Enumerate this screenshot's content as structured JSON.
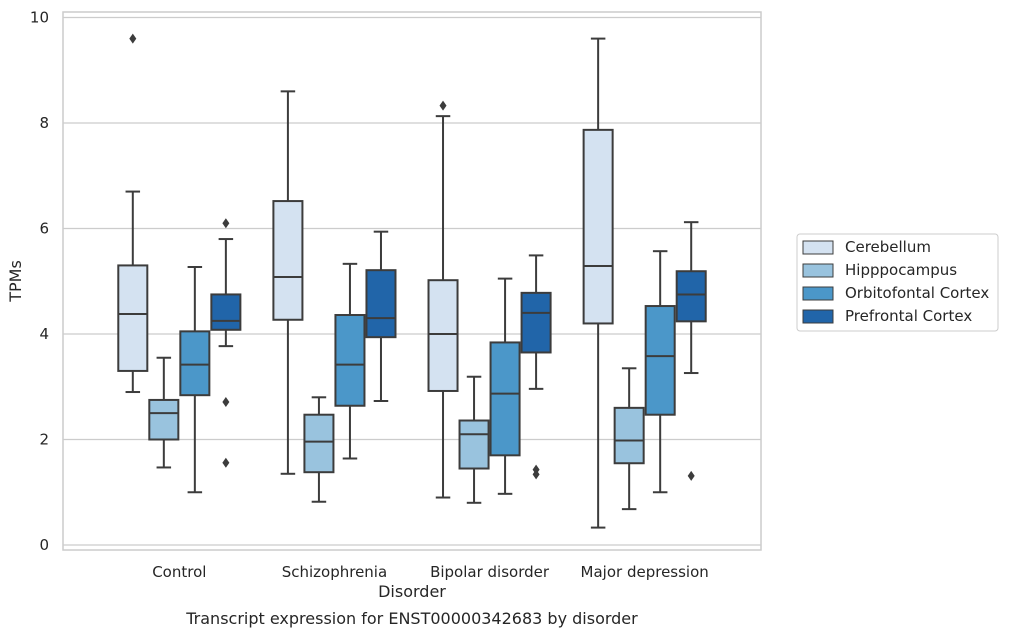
{
  "chart_data": {
    "type": "box",
    "caption": "Transcript expression for ENST00000342683 by disorder",
    "xlabel": "Disorder",
    "ylabel": "TPMs",
    "ylim": [
      -0.1,
      10.05
    ],
    "yticks": [
      0,
      2,
      4,
      6,
      8,
      10
    ],
    "grid": "horizontal",
    "legend_position": "right",
    "categories": [
      "Control",
      "Schizophrenia",
      "Bipolar disorder",
      "Major depression"
    ],
    "series": [
      {
        "name": "Cerebellum",
        "color": "#d4e2f1",
        "boxes": [
          {
            "whisker_low": 2.9,
            "q1": 3.3,
            "median": 4.38,
            "q3": 5.3,
            "whisker_high": 6.7,
            "outliers": [
              9.6
            ]
          },
          {
            "whisker_low": 1.35,
            "q1": 4.27,
            "median": 5.08,
            "q3": 6.52,
            "whisker_high": 8.6,
            "outliers": []
          },
          {
            "whisker_low": 0.9,
            "q1": 2.92,
            "median": 4.0,
            "q3": 5.02,
            "whisker_high": 8.13,
            "outliers": [
              8.33
            ]
          },
          {
            "whisker_low": 0.33,
            "q1": 4.2,
            "median": 5.29,
            "q3": 7.87,
            "whisker_high": 9.6,
            "outliers": []
          }
        ]
      },
      {
        "name": "Hipppocampus",
        "color": "#99c3de",
        "boxes": [
          {
            "whisker_low": 1.47,
            "q1": 2.0,
            "median": 2.5,
            "q3": 2.75,
            "whisker_high": 3.55,
            "outliers": []
          },
          {
            "whisker_low": 0.82,
            "q1": 1.38,
            "median": 1.96,
            "q3": 2.47,
            "whisker_high": 2.8,
            "outliers": []
          },
          {
            "whisker_low": 0.8,
            "q1": 1.45,
            "median": 2.1,
            "q3": 2.36,
            "whisker_high": 3.19,
            "outliers": []
          },
          {
            "whisker_low": 0.68,
            "q1": 1.55,
            "median": 1.98,
            "q3": 2.6,
            "whisker_high": 3.35,
            "outliers": []
          }
        ]
      },
      {
        "name": "Orbitofontal Cortex",
        "color": "#4b97c9",
        "boxes": [
          {
            "whisker_low": 1.0,
            "q1": 2.84,
            "median": 3.42,
            "q3": 4.05,
            "whisker_high": 5.27,
            "outliers": []
          },
          {
            "whisker_low": 1.64,
            "q1": 2.64,
            "median": 3.42,
            "q3": 4.36,
            "whisker_high": 5.33,
            "outliers": []
          },
          {
            "whisker_low": 0.97,
            "q1": 1.7,
            "median": 2.87,
            "q3": 3.84,
            "whisker_high": 5.05,
            "outliers": []
          },
          {
            "whisker_low": 1.0,
            "q1": 2.47,
            "median": 3.58,
            "q3": 4.53,
            "whisker_high": 5.57,
            "outliers": []
          }
        ]
      },
      {
        "name": "Prefrontal Cortex",
        "color": "#2165a9",
        "boxes": [
          {
            "whisker_low": 3.77,
            "q1": 4.08,
            "median": 4.25,
            "q3": 4.75,
            "whisker_high": 5.8,
            "outliers": [
              6.1,
              2.71,
              1.56
            ]
          },
          {
            "whisker_low": 2.73,
            "q1": 3.94,
            "median": 4.3,
            "q3": 5.21,
            "whisker_high": 5.94,
            "outliers": []
          },
          {
            "whisker_low": 2.96,
            "q1": 3.65,
            "median": 4.4,
            "q3": 4.78,
            "whisker_high": 5.49,
            "outliers": [
              1.43,
              1.34
            ]
          },
          {
            "whisker_low": 3.26,
            "q1": 4.24,
            "median": 4.75,
            "q3": 5.19,
            "whisker_high": 6.12,
            "outliers": [
              1.31
            ]
          }
        ]
      }
    ]
  }
}
